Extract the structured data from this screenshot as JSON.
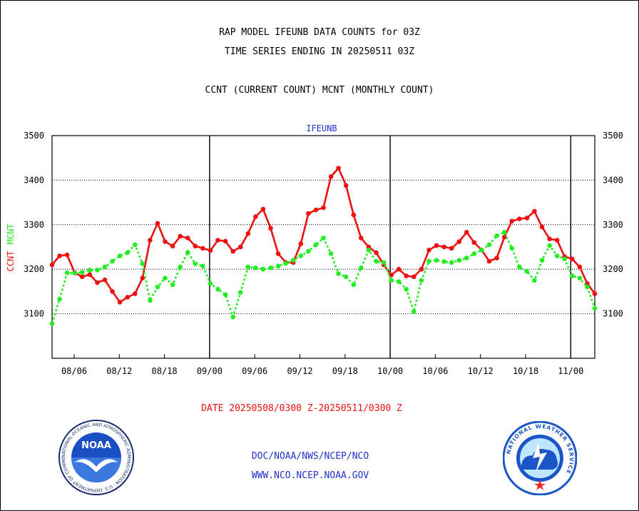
{
  "header": {
    "line1": "RAP MODEL IFEUNB DATA COUNTS for 03Z",
    "line2": "TIME SERIES ENDING IN 20250511 03Z",
    "line3": "CCNT (CURRENT COUNT) MCNT (MONTHLY COUNT)"
  },
  "footer": {
    "date_range": "DATE 20250508/0300 Z-20250511/0300 Z",
    "link1": "DOC/NOAA/NWS/NCEP/NCO",
    "link2": "WWW.NCO.NCEP.NOAA.GOV"
  },
  "logos": {
    "noaa_text": "NOAA",
    "noaa_ring": "NATIONAL OCEANIC AND ATMOSPHERIC ADMINISTRATION · U.S. DEPARTMENT OF COMMERCE ·",
    "nws_ring": "NATIONAL WEATHER SERVICE"
  },
  "colors": {
    "ccnt": "#ee1111",
    "mcnt": "#22ee22",
    "label_blue": "#2233cc",
    "noaa_blue": "#1a4fc4",
    "nws_blue": "#1a56c8"
  },
  "chart_data": {
    "type": "line",
    "title": "IFEUNB",
    "ylabel_left": "CCNT",
    "ylabel_left2": "MCNT",
    "ylim": [
      3000,
      3500
    ],
    "yticks": [
      3100,
      3200,
      3300,
      3400,
      3500
    ],
    "xticks": [
      "08/06",
      "08/12",
      "08/18",
      "09/00",
      "09/06",
      "09/12",
      "09/18",
      "10/00",
      "10/06",
      "10/12",
      "10/18",
      "11/00"
    ],
    "day_dividers": [
      "09/00",
      "10/00",
      "11/00"
    ],
    "grid": true,
    "series": [
      {
        "name": "CCNT",
        "values": [
          3210,
          3230,
          3232,
          3192,
          3183,
          3188,
          3170,
          3176,
          3150,
          3126,
          3137,
          3145,
          3180,
          3265,
          3303,
          3262,
          3252,
          3274,
          3270,
          3252,
          3247,
          3242,
          3265,
          3263,
          3240,
          3250,
          3280,
          3318,
          3335,
          3292,
          3235,
          3215,
          3215,
          3257,
          3325,
          3333,
          3338,
          3408,
          3427,
          3388,
          3322,
          3270,
          3250,
          3237,
          3210,
          3187,
          3200,
          3185,
          3183,
          3200,
          3243,
          3253,
          3250,
          3247,
          3262,
          3283,
          3260,
          3243,
          3218,
          3225,
          3272,
          3308,
          3313,
          3315,
          3330,
          3295,
          3268,
          3265,
          3228,
          3223,
          3205,
          3168,
          3145
        ]
      },
      {
        "name": "MCNT",
        "values": [
          3078,
          3133,
          3192,
          3191,
          3193,
          3198,
          3198,
          3205,
          3218,
          3230,
          3237,
          3255,
          3212,
          3130,
          3160,
          3180,
          3165,
          3205,
          3238,
          3212,
          3207,
          3168,
          3155,
          3143,
          3093,
          3148,
          3205,
          3203,
          3200,
          3203,
          3207,
          3213,
          3220,
          3230,
          3240,
          3255,
          3270,
          3235,
          3190,
          3183,
          3165,
          3203,
          3243,
          3218,
          3215,
          3175,
          3172,
          3155,
          3105,
          3175,
          3218,
          3220,
          3217,
          3215,
          3220,
          3225,
          3235,
          3243,
          3255,
          3275,
          3283,
          3247,
          3205,
          3195,
          3175,
          3220,
          3253,
          3230,
          3223,
          3185,
          3180,
          3160,
          3112
        ]
      }
    ]
  }
}
